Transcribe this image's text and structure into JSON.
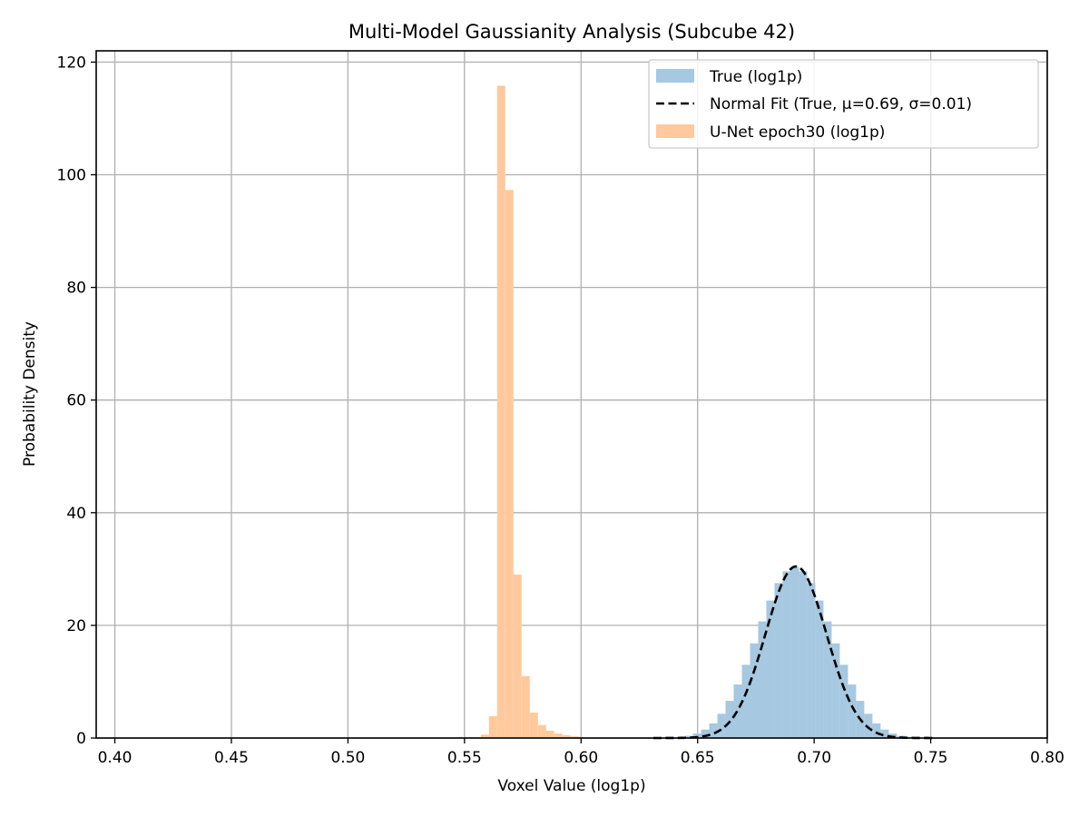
{
  "chart_data": {
    "type": "histogram",
    "title": "Multi-Model Gaussianity Analysis (Subcube 42)",
    "xlabel": "Voxel Value (log1p)",
    "ylabel": "Probability Density",
    "xlim": [
      0.392,
      0.8
    ],
    "ylim": [
      0,
      122
    ],
    "x_ticks": [
      0.4,
      0.45,
      0.5,
      0.55,
      0.6,
      0.65,
      0.7,
      0.75,
      0.8
    ],
    "x_tick_labels": [
      "0.40",
      "0.45",
      "0.50",
      "0.55",
      "0.60",
      "0.65",
      "0.70",
      "0.75",
      "0.80"
    ],
    "y_ticks": [
      0,
      20,
      40,
      60,
      80,
      100,
      120
    ],
    "y_tick_labels": [
      "0",
      "20",
      "40",
      "60",
      "80",
      "100",
      "120"
    ],
    "grid": true,
    "legend_position": "top-right",
    "legend": [
      "True (log1p)",
      "Normal Fit (True, μ=0.69, σ=0.01)",
      "U-Net epoch30 (log1p)"
    ],
    "colors": {
      "true_hist": "#a6c8e1",
      "fit_line": "#000000",
      "unet_hist": "#ffc99d",
      "grid": "#b0b0b0",
      "axes": "#000000"
    },
    "series": [
      {
        "name": "True (log1p)",
        "kind": "histogram",
        "bin_width": 0.0035,
        "bin_starts": [
          0.6305,
          0.634,
          0.6375,
          0.641,
          0.6445,
          0.648,
          0.6515,
          0.655,
          0.6585,
          0.662,
          0.6655,
          0.669,
          0.6725,
          0.676,
          0.6795,
          0.683,
          0.6865,
          0.69,
          0.6935,
          0.697,
          0.7005,
          0.704,
          0.7075,
          0.711,
          0.7145,
          0.718,
          0.7215,
          0.725,
          0.7285,
          0.732,
          0.7355,
          0.739,
          0.7425,
          0.746,
          0.7495
        ],
        "values": [
          0.02,
          0.05,
          0.1,
          0.2,
          0.4,
          0.8,
          1.5,
          2.6,
          4.3,
          6.6,
          9.5,
          13.0,
          16.8,
          20.7,
          24.4,
          27.5,
          29.6,
          30.4,
          29.6,
          27.5,
          24.4,
          20.7,
          16.8,
          13.0,
          9.5,
          6.6,
          4.3,
          2.6,
          1.5,
          0.8,
          0.4,
          0.2,
          0.1,
          0.05,
          0.02
        ]
      },
      {
        "name": "Normal Fit (True, μ=0.69, σ=0.01)",
        "kind": "line",
        "mu": 0.6922,
        "sigma": 0.0131,
        "x_range": [
          0.631,
          0.752
        ]
      },
      {
        "name": "U-Net epoch30 (log1p)",
        "kind": "histogram",
        "bin_width": 0.0035,
        "bin_starts": [
          0.5535,
          0.557,
          0.5605,
          0.564,
          0.5675,
          0.571,
          0.5745,
          0.578,
          0.5815,
          0.585,
          0.5885,
          0.592,
          0.5955,
          0.599,
          0.6025
        ],
        "values": [
          0.15,
          0.6,
          3.9,
          115.8,
          97.3,
          29.0,
          11.0,
          4.5,
          2.3,
          1.3,
          0.8,
          0.5,
          0.3,
          0.15,
          0.05
        ]
      }
    ]
  }
}
